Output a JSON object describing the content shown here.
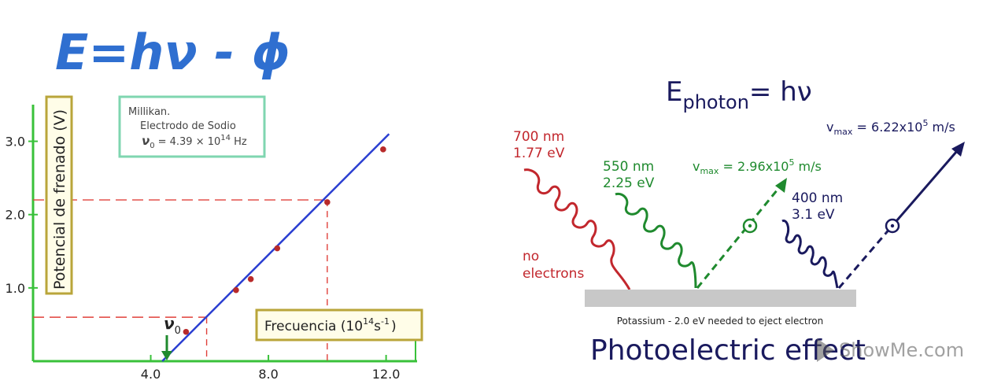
{
  "equation": {
    "main": "E=hν - ϕ"
  },
  "millikan_chart": {
    "legend": {
      "line1": "Millikan.",
      "line2": "Electrodo de Sodio",
      "line3_sym": "ν",
      "line3_sub": "0",
      "line3_eq": "= 4.39 × 10",
      "line3_exp": "14",
      "line3_unit": " Hz"
    },
    "ylabel": "Potencial de frenado (V)",
    "xlabel_text": "Frecuencia (10",
    "xlabel_exp1": "14",
    "xlabel_unit": "s",
    "xlabel_exp2": "-1",
    "xlabel_close": ")",
    "nu0_sym": "ν",
    "nu0_sub": "0",
    "colors": {
      "axis": "#39c13a",
      "line": "#2b3fd1",
      "point": "#b82a2a",
      "guide": "#e0403a",
      "box": "#b9a53a",
      "legendBox": "#7fd6b0"
    }
  },
  "chart_data": {
    "type": "scatter",
    "x": [
      5.2,
      6.9,
      7.4,
      8.3,
      10.0,
      11.9
    ],
    "values": [
      0.4,
      0.97,
      1.12,
      1.54,
      2.17,
      2.89
    ],
    "fit_line": {
      "x": [
        4.39,
        12.1
      ],
      "y": [
        0.0,
        3.1
      ]
    },
    "xticks": [
      "4.0",
      "8.0",
      "12.0"
    ],
    "xtick_values": [
      4.0,
      8.0,
      12.0
    ],
    "yticks": [
      "1.0",
      "2.0",
      "3.0"
    ],
    "ytick_values": [
      1.0,
      2.0,
      3.0
    ],
    "guide_points": [
      {
        "x": 5.9,
        "y": 0.6
      },
      {
        "x": 10.0,
        "y": 2.2
      }
    ],
    "xlim": [
      0.0,
      13.0
    ],
    "ylim": [
      0.0,
      3.5
    ]
  },
  "photoelectric": {
    "e_photon_E": "E",
    "e_photon_sub": "photon",
    "e_photon_rest": "= hν",
    "red_wave": {
      "line1": "700 nm",
      "line2": "1.77 eV",
      "note1": "no",
      "note2": "electrons"
    },
    "green_wave": {
      "line1": "550 nm",
      "line2": "2.25 eV"
    },
    "green_vmax": {
      "v": "v",
      "sub": "max",
      "eq": " = 2.96x10",
      "exp": "5",
      "unit": " m/s"
    },
    "blue_wave": {
      "line1": "400 nm",
      "line2": "3.1 eV"
    },
    "blue_vmax": {
      "v": "v",
      "sub": "max",
      "eq": " = 6.22x10",
      "exp": "5",
      "unit": " m/s"
    },
    "plate_label": "Potassium - 2.0 eV needed to eject electron",
    "title": "Photoelectric effect",
    "watermark": "ShowMe.com",
    "colors": {
      "red": "#c2272d",
      "green": "#1f8a2e",
      "navy": "#1a1a5e",
      "plate": "#c8c8c8"
    }
  }
}
